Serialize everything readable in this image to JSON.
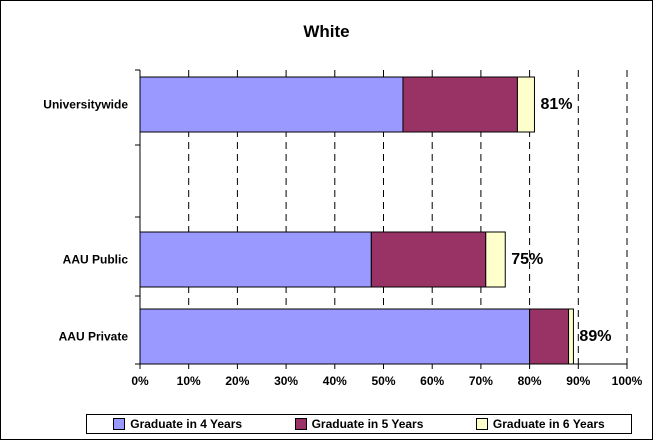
{
  "chart_data": {
    "type": "bar",
    "orientation": "horizontal",
    "stacked": true,
    "title": "White",
    "xlabel": "",
    "ylabel": "",
    "xlim": [
      0,
      100
    ],
    "x_ticks": [
      "0%",
      "10%",
      "20%",
      "30%",
      "40%",
      "50%",
      "60%",
      "70%",
      "80%",
      "90%",
      "100%"
    ],
    "grid": "vertical dashed",
    "legend_position": "bottom",
    "categories": [
      "Universitywide",
      "AAU Public",
      "AAU Private"
    ],
    "series": [
      {
        "name": "Graduate in 4 Years",
        "color": "#9999ff",
        "values": [
          54,
          47.5,
          80
        ]
      },
      {
        "name": "Graduate in 5 Years",
        "color": "#993366",
        "values": [
          23.5,
          23.5,
          8
        ]
      },
      {
        "name": "Graduate in 6 Years",
        "color": "#ffffcc",
        "values": [
          3.5,
          4,
          1
        ]
      }
    ],
    "totals": [
      "81%",
      "75%",
      "89%"
    ]
  }
}
